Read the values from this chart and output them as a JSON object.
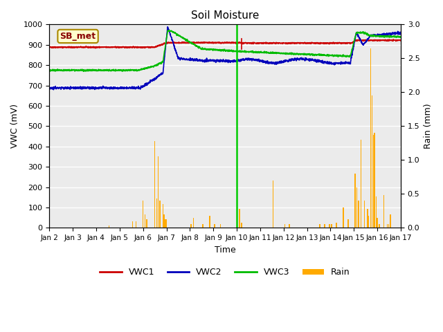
{
  "title": "Soil Moisture",
  "xlabel": "Time",
  "ylabel_left": "VWC (mV)",
  "ylabel_right": "Rain (mm)",
  "xlim": [
    2,
    17
  ],
  "ylim_left": [
    0,
    1000
  ],
  "ylim_right": [
    0,
    3.0
  ],
  "yticks_left": [
    0,
    100,
    200,
    300,
    400,
    500,
    600,
    700,
    800,
    900,
    1000
  ],
  "yticks_right": [
    0.0,
    0.5,
    1.0,
    1.5,
    2.0,
    2.5,
    3.0
  ],
  "xtick_positions": [
    2,
    3,
    4,
    5,
    6,
    7,
    8,
    9,
    10,
    11,
    12,
    13,
    14,
    15,
    16,
    17
  ],
  "xtick_labels": [
    "Jan 2",
    "Jan 3",
    "Jan 4",
    "Jan 5",
    "Jan 6",
    "Jan 7",
    "Jan 8",
    "Jan 9",
    "Jan 10",
    "Jan 11",
    "Jan 12",
    "Jan 13",
    "Jan 14",
    "Jan 15",
    "Jan 16",
    "Jan 17"
  ],
  "background_color": "#ebebeb",
  "annotation_text": "SB_met",
  "annotation_facecolor": "#ffffcc",
  "annotation_edgecolor": "#aa8800",
  "annotation_textcolor": "#880000",
  "vwc1_color": "#cc0000",
  "vwc2_color": "#0000bb",
  "vwc3_color": "#00bb00",
  "vwc3_vline_color": "#00cc00",
  "rain_color": "#ffaa00",
  "grid_color": "#ffffff",
  "vwc3_vline_x": 10.0,
  "vwc1_red_vline_x": 10.2
}
